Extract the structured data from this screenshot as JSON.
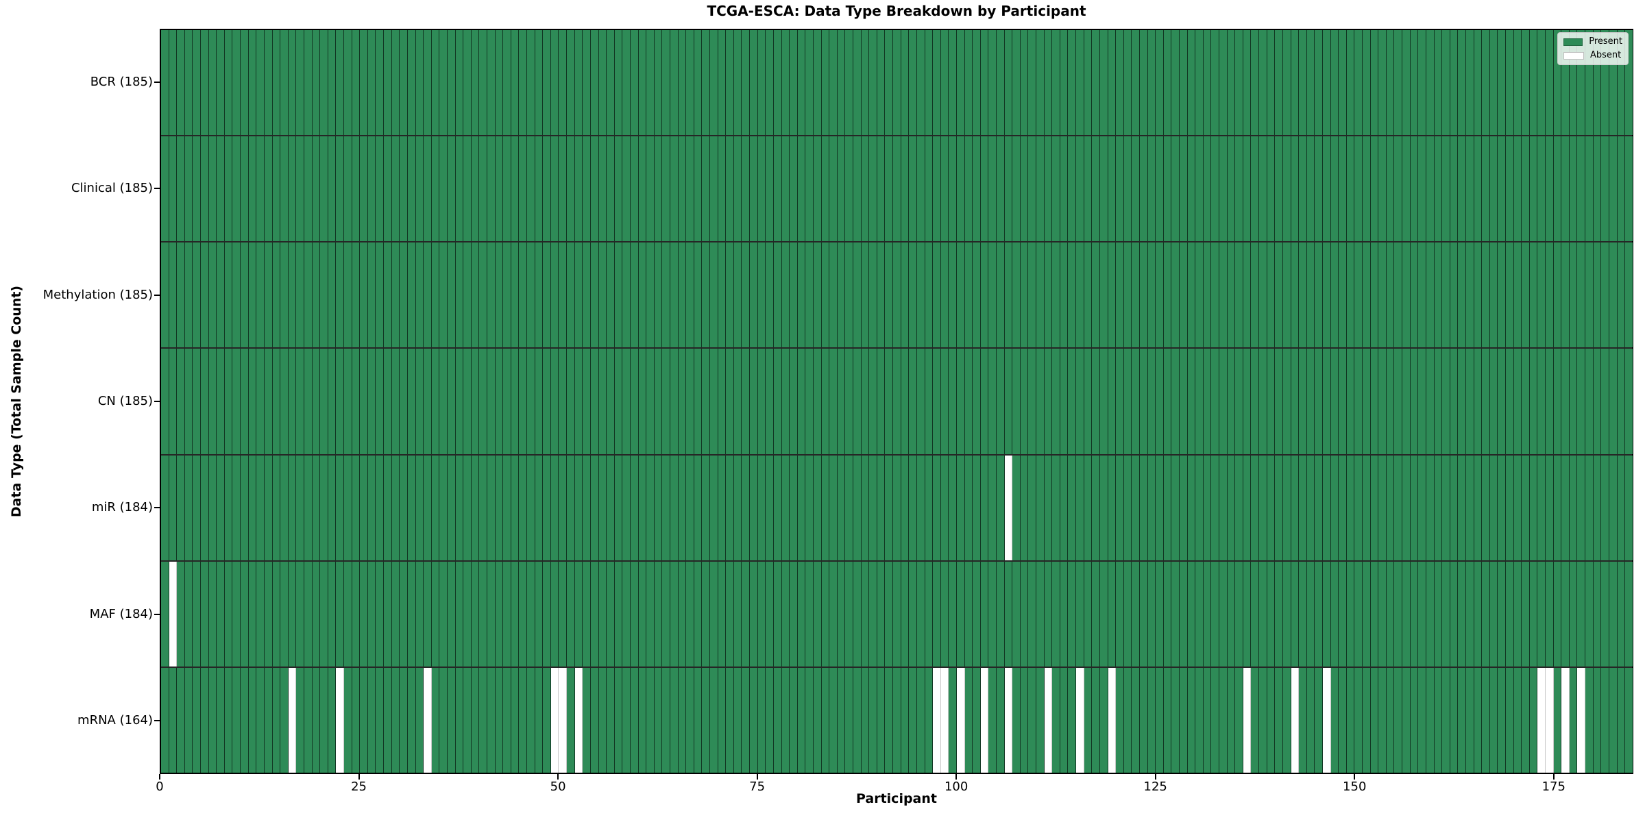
{
  "title": "TCGA-ESCA: Data Type Breakdown by Participant",
  "xlabel": "Participant",
  "ylabel": "Data Type (Total Sample Count)",
  "legend": [
    {
      "label": "Present",
      "color": "#2e8b57"
    },
    {
      "label": "Absent",
      "color": "#ffffff"
    }
  ],
  "colors": {
    "present": "#2e8b57",
    "absent": "#ffffff",
    "bar_edge": "rgba(0,0,0,0.6)",
    "absent_edge": "#c9c9c9",
    "spine": "#000000"
  },
  "chart_data": {
    "type": "heatmap",
    "title": "TCGA-ESCA: Data Type Breakdown by Participant",
    "xlabel": "Participant",
    "ylabel": "Data Type (Total Sample Count)",
    "n_participants": 185,
    "xlim": [
      0,
      185
    ],
    "x_tick_values": [
      0,
      25,
      50,
      75,
      100,
      125,
      150,
      175
    ],
    "legend_position": "upper right",
    "grid": false,
    "rows": [
      {
        "label": "BCR (185)",
        "total": 185,
        "absent_participants": []
      },
      {
        "label": "Clinical (185)",
        "total": 185,
        "absent_participants": []
      },
      {
        "label": "Methylation (185)",
        "total": 185,
        "absent_participants": []
      },
      {
        "label": "CN (185)",
        "total": 185,
        "absent_participants": []
      },
      {
        "label": "miR (184)",
        "total": 184,
        "absent_participants": [
          106
        ]
      },
      {
        "label": "MAF (184)",
        "total": 184,
        "absent_participants": [
          1
        ]
      },
      {
        "label": "mRNA (164)",
        "total": 164,
        "absent_participants": [
          16,
          22,
          33,
          49,
          50,
          52,
          97,
          98,
          100,
          103,
          106,
          111,
          115,
          119,
          136,
          142,
          146,
          173,
          174,
          176,
          178
        ]
      }
    ]
  }
}
